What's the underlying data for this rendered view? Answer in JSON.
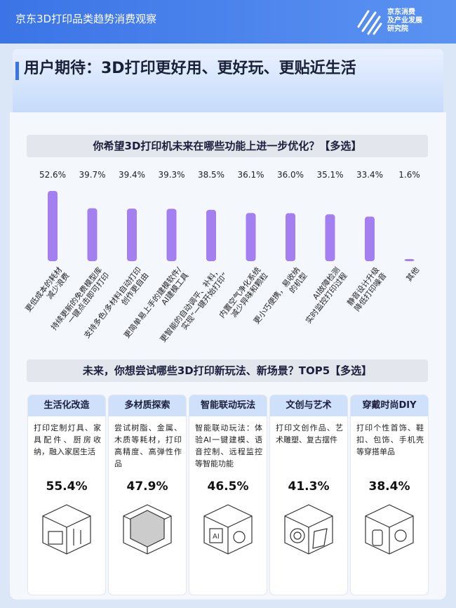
{
  "header": {
    "title": "京东3D打印品类趋势消费观察",
    "logo": "京东消费\n及产业发展\n研究院"
  },
  "headline": "用户期待：3D打印更好用、更好玩、更贴近生活",
  "chart_data": {
    "type": "bar",
    "title": "你希望3D打印机未来在哪些功能上进一步优化？【多选】",
    "categories": [
      "更低成本的耗材\n减少浪费",
      "持续更新的免费模型库\n一键点击即可打印",
      "支持多色/多材料自动打印\n创作更自由",
      "更简单易上手的建模软件/\nAI建模工具",
      "更智能的自动调平、补料，\n实现“一键开始打印”",
      "内置空气净化系统\n减少异味和颗粒",
      "更小巧便携，易收纳\n的机型",
      "AI故障检测\n实时监控打印过程",
      "静音设计升级\n降低打印噪音",
      "其他"
    ],
    "values": [
      52.6,
      39.7,
      39.4,
      39.3,
      38.5,
      36.1,
      36.0,
      35.1,
      33.4,
      1.6
    ],
    "value_labels": [
      "52.6%",
      "39.7%",
      "39.4%",
      "39.3%",
      "38.5%",
      "36.1%",
      "36.0%",
      "35.1%",
      "33.4%",
      "1.6%"
    ],
    "color": "#a47ff0"
  },
  "section2": {
    "title": "未来，你想尝试哪些3D打印新玩法、新场景？TOP5【多选】",
    "cards": [
      {
        "title": "生活化改造",
        "text": "打印定制灯具、家具配件、厨房收纳，融入家居生活",
        "value": "55.4%"
      },
      {
        "title": "多材质探索",
        "text": "尝试树脂、金属、木质等耗材，打印高精度、高弹性作品",
        "value": "47.9%"
      },
      {
        "title": "智能联动玩法",
        "text": "智能联动玩法：体验AI一键建模、语音控制、远程监控等智能功能",
        "value": "46.5%"
      },
      {
        "title": "文创与艺术",
        "text": "打印文创作品、艺术雕塑、复古摆件",
        "value": "41.3%"
      },
      {
        "title": "穿戴时尚DIY",
        "text": "打印个性首饰、鞋扣、包饰、手机壳等穿搭单品",
        "value": "38.4%"
      }
    ]
  }
}
